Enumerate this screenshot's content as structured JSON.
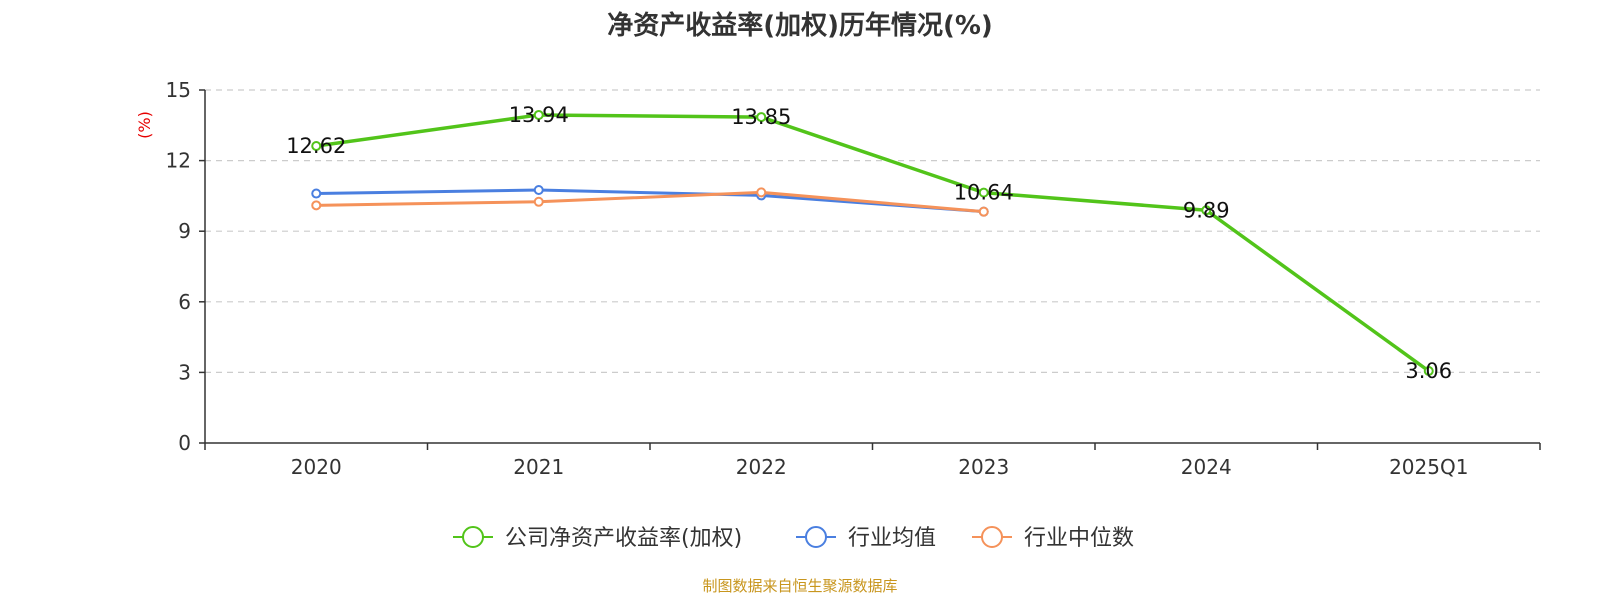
{
  "chart_data": {
    "type": "line",
    "title": "净资产收益率(加权)历年情况(%)",
    "ylabel": "(%)",
    "xlabel": "",
    "categories": [
      "2020",
      "2021",
      "2022",
      "2023",
      "2024",
      "2025Q1"
    ],
    "ylim": [
      0,
      15
    ],
    "yticks": [
      0,
      3,
      6,
      9,
      12,
      15
    ],
    "grid": true,
    "legend_position": "bottom",
    "series": [
      {
        "name": "公司净资产收益率(加权)",
        "color": "#52c41a",
        "values": [
          12.62,
          13.94,
          13.85,
          10.64,
          9.89,
          3.06
        ],
        "labels": [
          "12.62",
          "13.94",
          "13.85",
          "10.64",
          "9.89",
          "3.06"
        ],
        "show_labels": true
      },
      {
        "name": "行业均值",
        "color": "#4a7fe0",
        "values": [
          10.6,
          10.75,
          10.52,
          9.83,
          null,
          null
        ],
        "show_labels": false
      },
      {
        "name": "行业中位数",
        "color": "#f5925a",
        "values": [
          10.1,
          10.25,
          10.65,
          9.83,
          null,
          null
        ],
        "show_labels": false
      }
    ],
    "source": "制图数据来自恒生聚源数据库"
  }
}
